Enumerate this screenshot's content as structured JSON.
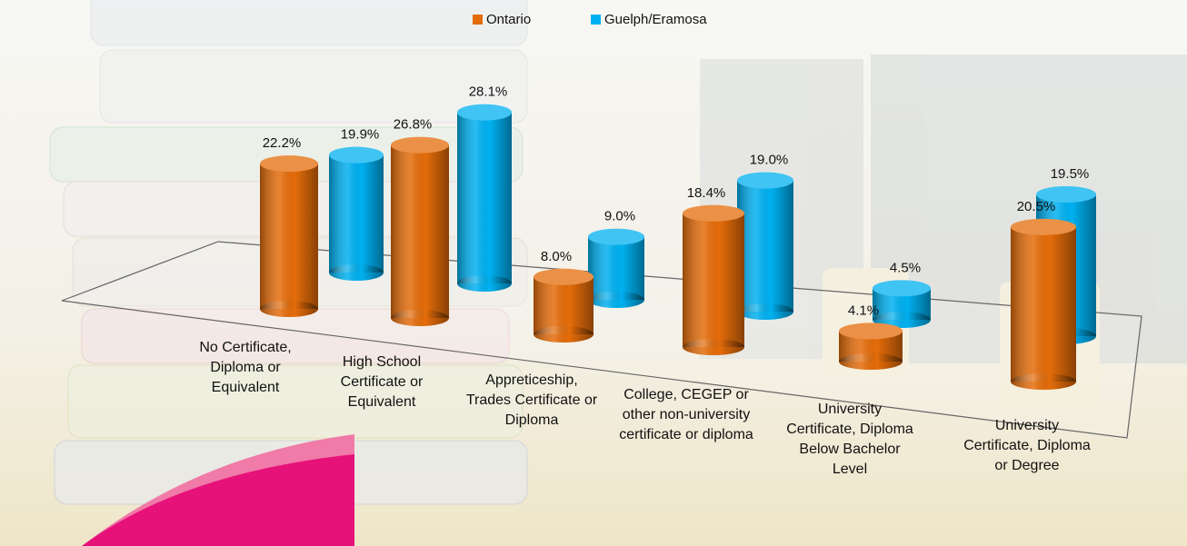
{
  "chart_data": {
    "type": "bar3d",
    "categories": [
      "No Certificate, Diploma or Equivalent",
      "High School Certificate or Equivalent",
      "Appreticeship, Trades Certificate or Diploma",
      "College, CEGEP or other non-university certificate or diploma",
      "University Certificate, Diploma Below Bachelor Level",
      "University Certificate, Diploma or Degree"
    ],
    "series": [
      {
        "name": "Ontario",
        "color": "#e46c0a",
        "values": [
          22.2,
          26.8,
          8.0,
          18.4,
          4.1,
          20.5
        ],
        "value_labels": [
          "22.2%",
          "26.8%",
          "8.0%",
          "18.4%",
          "4.1%",
          "20.5%"
        ]
      },
      {
        "name": "Guelph/Eramosa",
        "color": "#00b0f0",
        "values": [
          19.9,
          28.1,
          9.0,
          19.0,
          4.5,
          19.5
        ],
        "value_labels": [
          "19.9%",
          "28.1%",
          "9.0%",
          "19.0%",
          "4.5%",
          "19.5%"
        ]
      }
    ],
    "legend": "top"
  }
}
